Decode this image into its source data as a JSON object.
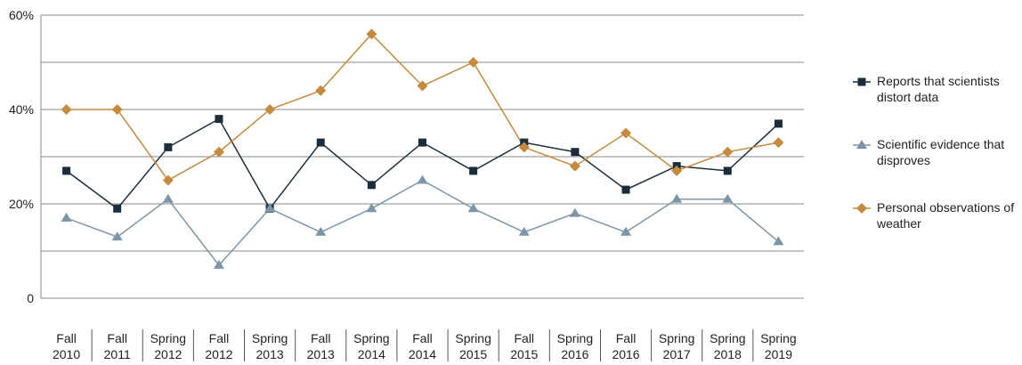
{
  "chart_data": {
    "type": "line",
    "categories": [
      "Fall 2010",
      "Fall 2011",
      "Spring 2012",
      "Fall 2012",
      "Spring 2013",
      "Fall 2013",
      "Spring 2014",
      "Fall 2014",
      "Spring 2015",
      "Fall 2015",
      "Spring 2016",
      "Fall 2016",
      "Spring 2017",
      "Spring 2018",
      "Spring 2019"
    ],
    "series": [
      {
        "name": "Reports that scientists distort data",
        "color": "#1b2d3a",
        "marker": "square",
        "values": [
          27,
          19,
          32,
          38,
          19,
          33,
          24,
          33,
          27,
          33,
          31,
          23,
          28,
          27,
          37
        ]
      },
      {
        "name": "Scientific evidence that disproves",
        "color": "#7d95a8",
        "marker": "triangle",
        "values": [
          17,
          13,
          21,
          7,
          19,
          14,
          19,
          25,
          19,
          14,
          18,
          14,
          21,
          21,
          12
        ]
      },
      {
        "name": "Personal observations of weather",
        "color": "#c48a3f",
        "marker": "diamond",
        "values": [
          40,
          40,
          25,
          31,
          40,
          44,
          56,
          45,
          50,
          32,
          28,
          35,
          27,
          31,
          33
        ]
      }
    ],
    "ylim": [
      0,
      60
    ],
    "yticks": [
      0,
      {
        "value": 10,
        "label": null
      },
      {
        "value": 20,
        "label": "20%"
      },
      {
        "value": 30,
        "label": null
      },
      {
        "value": 40,
        "label": "40%"
      },
      {
        "value": 50,
        "label": null
      },
      {
        "value": 60,
        "label": "60%"
      }
    ],
    "grid": true,
    "legend": "right"
  }
}
